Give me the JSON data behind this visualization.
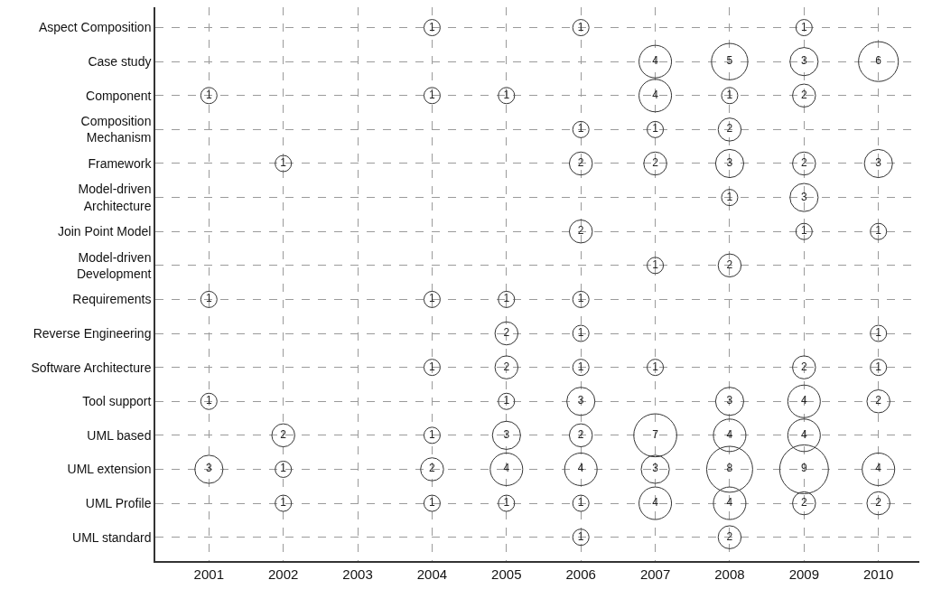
{
  "chart_data": {
    "type": "heatmap",
    "categories": [
      "2001",
      "2002",
      "2003",
      "2004",
      "2005",
      "2006",
      "2007",
      "2008",
      "2009",
      "2010"
    ],
    "y_categories": [
      "Aspect Composition",
      "Case study",
      "Component",
      "Composition\nMechanism",
      "Framework",
      "Model-driven\nArchitecture",
      "Join Point Model",
      "Model-driven\nDevelopment",
      "Requirements",
      "Reverse Engineering",
      "Software Architecture",
      "Tool support",
      "UML based",
      "UML extension",
      "UML Profile",
      "UML standard"
    ],
    "cells": [
      [
        null,
        null,
        null,
        1,
        null,
        1,
        null,
        null,
        1,
        null
      ],
      [
        null,
        null,
        null,
        null,
        null,
        null,
        4,
        5,
        3,
        6
      ],
      [
        1,
        null,
        null,
        1,
        1,
        null,
        4,
        1,
        2,
        null
      ],
      [
        null,
        null,
        null,
        null,
        null,
        1,
        1,
        2,
        null,
        null
      ],
      [
        null,
        1,
        null,
        null,
        null,
        2,
        2,
        3,
        2,
        3
      ],
      [
        null,
        null,
        null,
        null,
        null,
        null,
        null,
        1,
        3,
        null
      ],
      [
        null,
        null,
        null,
        null,
        null,
        2,
        null,
        null,
        1,
        1
      ],
      [
        null,
        null,
        null,
        null,
        null,
        null,
        1,
        2,
        null,
        null
      ],
      [
        1,
        null,
        null,
        1,
        1,
        1,
        null,
        null,
        null,
        null
      ],
      [
        null,
        null,
        null,
        null,
        2,
        1,
        null,
        null,
        null,
        1
      ],
      [
        null,
        null,
        null,
        1,
        2,
        1,
        1,
        null,
        2,
        1
      ],
      [
        1,
        null,
        null,
        null,
        1,
        3,
        null,
        3,
        4,
        2
      ],
      [
        null,
        2,
        null,
        1,
        3,
        2,
        7,
        4,
        4,
        null
      ],
      [
        3,
        1,
        null,
        2,
        4,
        4,
        3,
        8,
        9,
        4
      ],
      [
        null,
        1,
        null,
        1,
        1,
        1,
        4,
        4,
        2,
        2
      ],
      [
        null,
        null,
        null,
        null,
        null,
        1,
        null,
        2,
        null,
        null
      ]
    ],
    "color": "#333333",
    "data_labels": true,
    "grid": true,
    "line_style": "dashed"
  }
}
